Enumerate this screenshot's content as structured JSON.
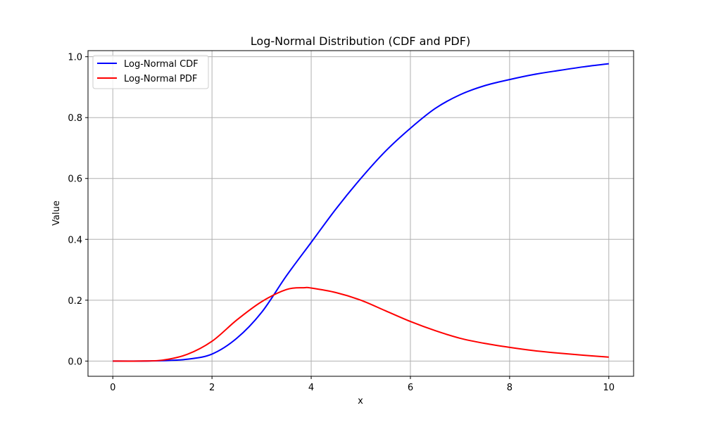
{
  "chart_data": {
    "type": "line",
    "title": "Log-Normal Distribution (CDF and PDF)",
    "xlabel": "x",
    "ylabel": "Value",
    "xlim": [
      -0.5,
      10.5
    ],
    "ylim": [
      -0.05,
      1.02
    ],
    "xticks": [
      0,
      2,
      4,
      6,
      8,
      10
    ],
    "yticks": [
      0.0,
      0.2,
      0.4,
      0.6,
      0.8,
      1.0
    ],
    "xtick_labels": [
      "0",
      "2",
      "4",
      "6",
      "8",
      "10"
    ],
    "ytick_labels": [
      "0.0",
      "0.2",
      "0.4",
      "0.6",
      "0.8",
      "1.0"
    ],
    "grid": true,
    "legend_position": "top-left",
    "series": [
      {
        "name": "Log-Normal CDF",
        "color": "#0000ff",
        "x": [
          0,
          0.5,
          1,
          1.5,
          2,
          2.5,
          3,
          3.5,
          4,
          4.5,
          5,
          5.5,
          6,
          6.5,
          7,
          7.5,
          8,
          8.5,
          9,
          9.5,
          10
        ],
        "y": [
          0,
          0.0,
          0.0015,
          0.006,
          0.023,
          0.075,
          0.16,
          0.28,
          0.39,
          0.5,
          0.6,
          0.69,
          0.765,
          0.83,
          0.875,
          0.905,
          0.925,
          0.942,
          0.955,
          0.967,
          0.977
        ]
      },
      {
        "name": "Log-Normal PDF",
        "color": "#ff0000",
        "x": [
          0,
          0.5,
          1,
          1.5,
          2,
          2.5,
          3,
          3.5,
          3.85,
          4,
          4.5,
          5,
          5.5,
          6,
          6.5,
          7,
          7.5,
          8,
          8.5,
          9,
          9.5,
          10
        ],
        "y": [
          0,
          0.0,
          0.003,
          0.022,
          0.065,
          0.135,
          0.195,
          0.235,
          0.241,
          0.24,
          0.225,
          0.2,
          0.165,
          0.13,
          0.1,
          0.075,
          0.058,
          0.045,
          0.034,
          0.026,
          0.019,
          0.013
        ]
      }
    ]
  }
}
